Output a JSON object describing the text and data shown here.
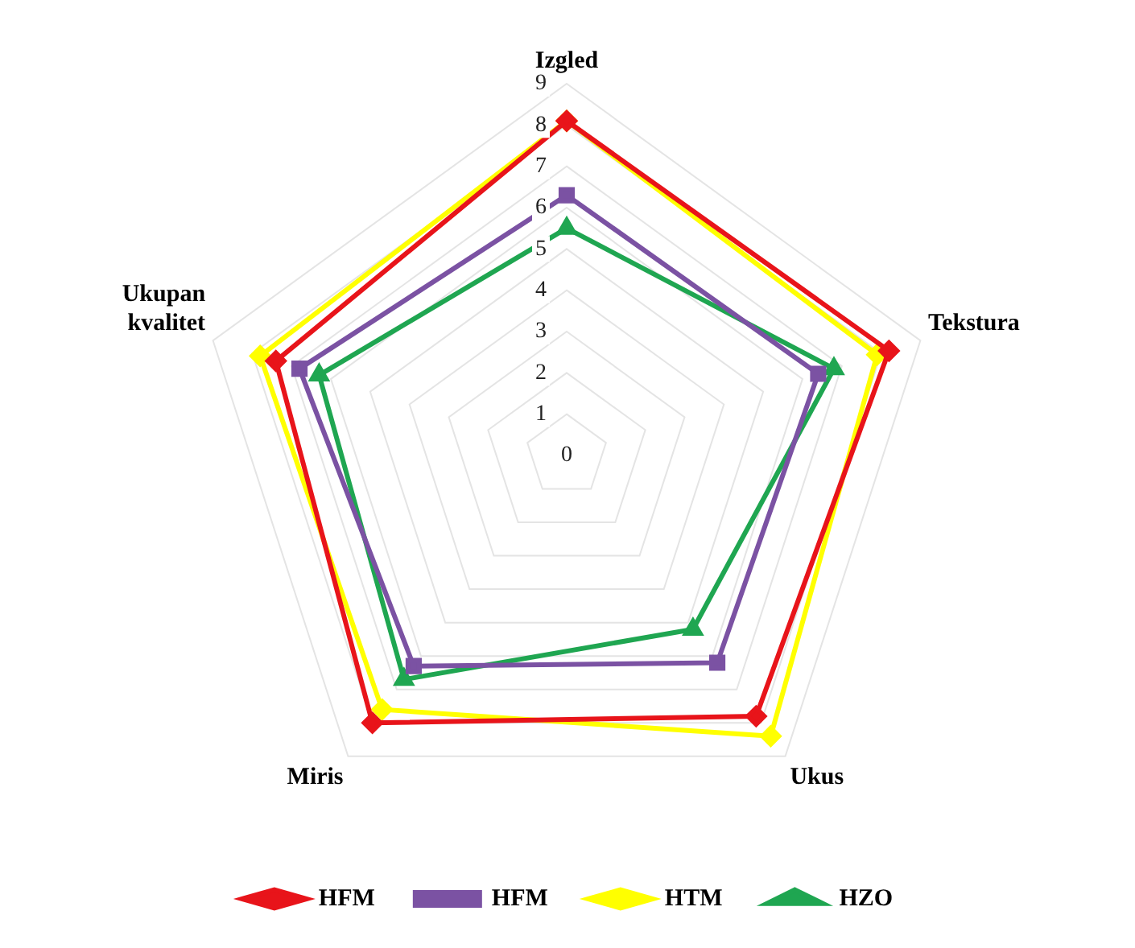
{
  "chart_data": {
    "type": "radar",
    "categories": [
      "Izgled",
      "Tekstura",
      "Ukus",
      "Miris",
      "Ukupan\nkvalitet"
    ],
    "series": [
      {
        "name": "HFM",
        "color": "#e8141a",
        "marker": "diamond",
        "values": [
          8.1,
          8.2,
          7.8,
          8.0,
          7.4
        ]
      },
      {
        "name": "HFM",
        "color": "#7b52a3",
        "marker": "square",
        "values": [
          6.3,
          6.4,
          6.2,
          6.3,
          6.8
        ]
      },
      {
        "name": "HTM",
        "color": "#ffff00",
        "marker": "diamond",
        "values": [
          8.1,
          7.9,
          8.4,
          7.6,
          7.8
        ]
      },
      {
        "name": "HZO",
        "color": "#1fa651",
        "marker": "triangle",
        "values": [
          5.5,
          6.8,
          5.2,
          6.7,
          6.3
        ]
      }
    ],
    "ylim": [
      0,
      9
    ],
    "yticks": [
      0,
      1,
      2,
      3,
      4,
      5,
      6,
      7,
      8,
      9
    ],
    "grid": true,
    "legend": "bottom"
  }
}
